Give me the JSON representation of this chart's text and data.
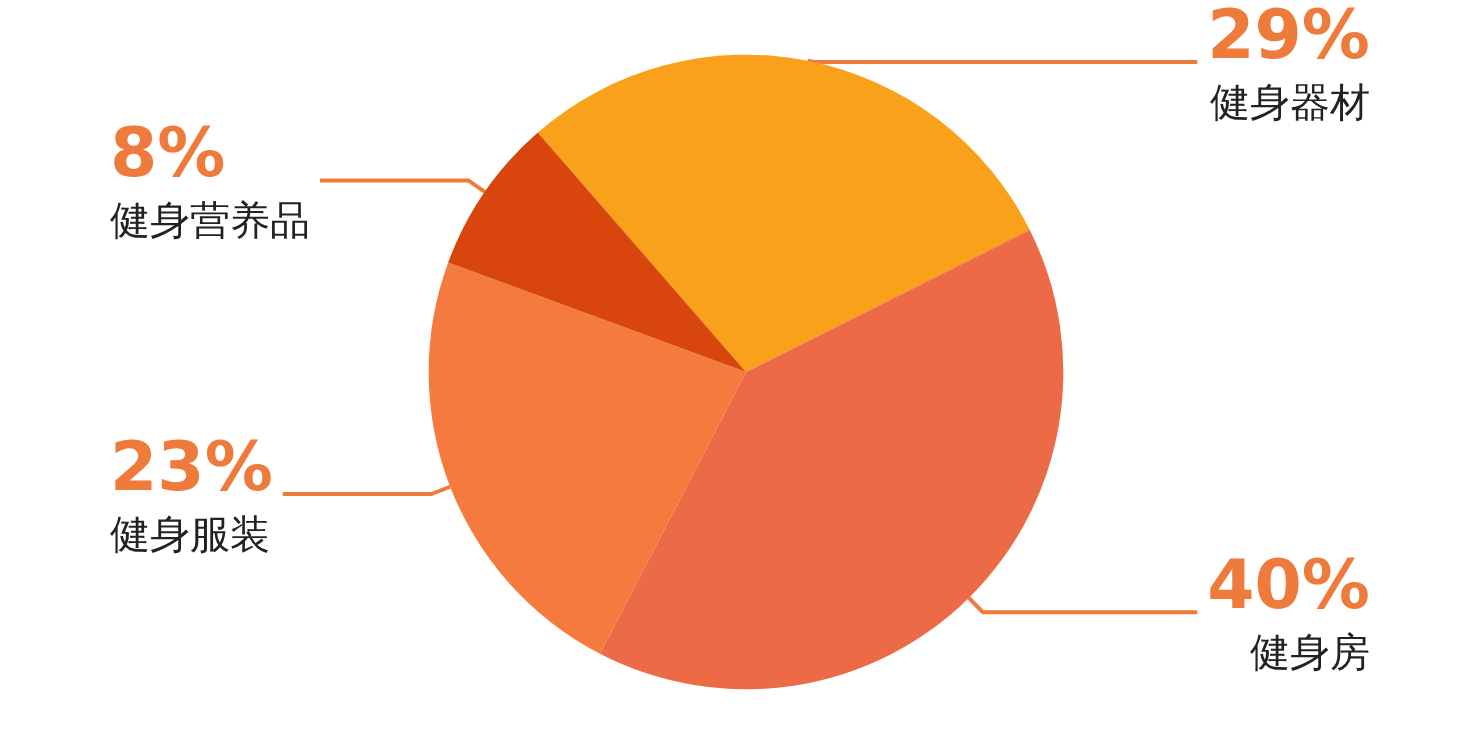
{
  "chart_data": {
    "type": "pie",
    "categories": [
      "健身器材",
      "健身房",
      "健身服装",
      "健身营养品"
    ],
    "values": [
      29,
      40,
      23,
      8
    ],
    "value_labels": [
      "29%",
      "40%",
      "23%",
      "8%"
    ],
    "colors": [
      "#f9a11b",
      "#ec6a45",
      "#f47b3d",
      "#d8460e"
    ],
    "legend": false
  }
}
